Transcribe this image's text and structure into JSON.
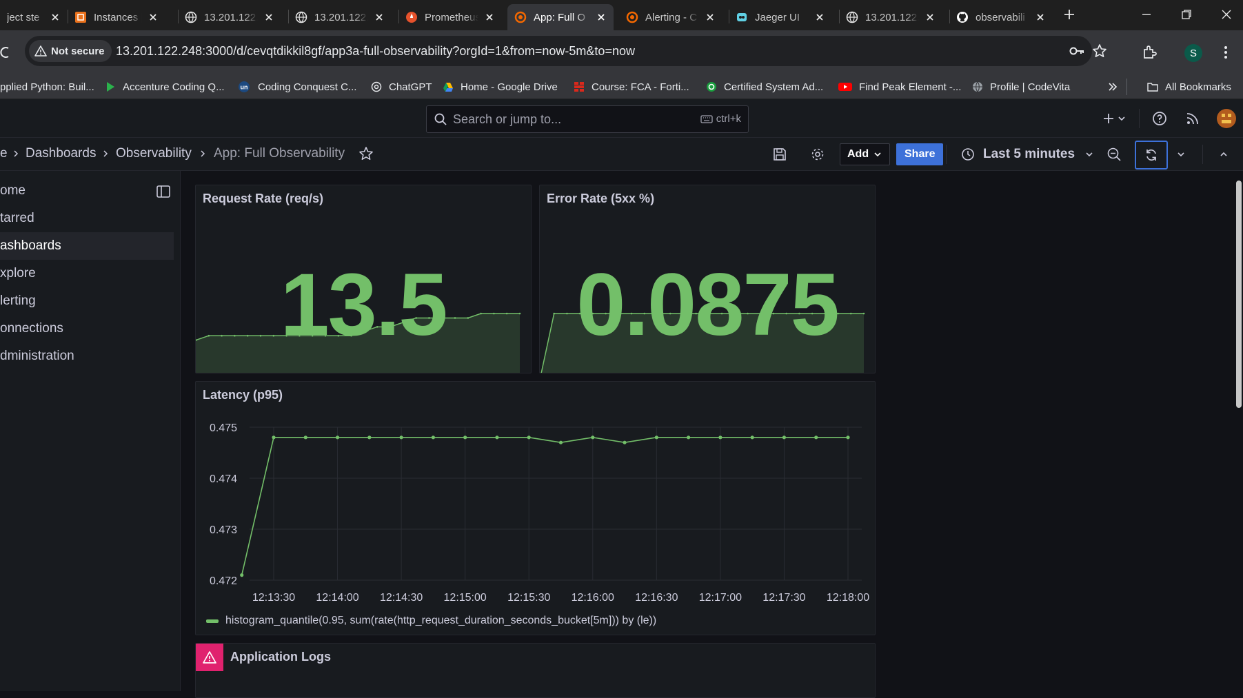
{
  "browser": {
    "tabs": [
      {
        "title": "ject ste",
        "icon": "page-icon"
      },
      {
        "title": "Instances |",
        "icon": "instances-icon"
      },
      {
        "title": "13.201.122.",
        "icon": "globe-icon"
      },
      {
        "title": "13.201.122.",
        "icon": "globe-icon"
      },
      {
        "title": "Prometheus",
        "icon": "prometheus-icon"
      },
      {
        "title": "App: Full O",
        "icon": "grafana-icon",
        "active": true
      },
      {
        "title": "Alerting - C",
        "icon": "grafana-icon"
      },
      {
        "title": "Jaeger UI",
        "icon": "jaeger-icon"
      },
      {
        "title": "13.201.122.",
        "icon": "globe-icon"
      },
      {
        "title": "observabili",
        "icon": "github-icon"
      }
    ],
    "security_label": "Not secure",
    "url": "13.201.122.248:3000/d/cevqtdikkil8gf/app3a-full-observability?orgId=1&from=now-5m&to=now",
    "profile_initial": "S",
    "bookmarks": [
      {
        "label": "pplied Python: Buil...",
        "icon": "bookmark-icon"
      },
      {
        "label": "Accenture Coding Q...",
        "icon": "accenture-icon"
      },
      {
        "label": "Coding Conquest C...",
        "icon": "unstop-icon"
      },
      {
        "label": "ChatGPT",
        "icon": "chatgpt-icon"
      },
      {
        "label": "Home - Google Drive",
        "icon": "drive-icon"
      },
      {
        "label": "Course: FCA - Forti...",
        "icon": "fortinet-icon"
      },
      {
        "label": "Certified System Ad...",
        "icon": "certificate-icon"
      },
      {
        "label": "Find Peak Element -...",
        "icon": "youtube-icon"
      },
      {
        "label": "Profile | CodeVita",
        "icon": "globe-icon"
      }
    ],
    "all_bookmarks_label": "All Bookmarks",
    "colors": {
      "tabbar": "#1f1f1f",
      "toolbar": "#35363a",
      "omnibox": "#202124"
    }
  },
  "grafana": {
    "search_placeholder": "Search or jump to...",
    "search_shortcut": "ctrl+k",
    "breadcrumb": [
      "e",
      "Dashboards",
      "Observability",
      "App: Full Observability"
    ],
    "add_label": "Add",
    "share_label": "Share",
    "time_range": "Last 5 minutes",
    "nav": [
      "Home",
      "Starred",
      "Dashboards",
      "Explore",
      "Alerting",
      "Connections",
      "Administration"
    ],
    "nav_visible": [
      "ome",
      "tarred",
      "ashboards",
      "xplore",
      "lerting",
      "onnections",
      "dministration"
    ],
    "nav_active": "Dashboards",
    "colors": {
      "bg": "#111217",
      "panel": "#181b1f",
      "series": "#73bf69",
      "primary": "#3d71d9",
      "alert": "#e0226e"
    }
  },
  "panels": {
    "request_rate": {
      "title": "Request Rate (req/s)",
      "value": "13.5",
      "sparkline": [
        7.5,
        8.5,
        8.5,
        8.5,
        8.5,
        8.5,
        8.5,
        8.5,
        8.5,
        8.5,
        8.5,
        8.5,
        8.5,
        9.5,
        10.5,
        10.5,
        11.5,
        12.5,
        12.5,
        12.5,
        12.5,
        12.5,
        13.5,
        13.5,
        13.5,
        13.5
      ]
    },
    "error_rate": {
      "title": "Error Rate (5xx %)",
      "value": "0.0875",
      "sparkline": [
        0,
        0.0875,
        0.0875,
        0.0875,
        0.0875,
        0.0875,
        0.0875,
        0.0875,
        0.0875,
        0.0875,
        0.0875,
        0.0875,
        0.0875,
        0.0875,
        0.0875,
        0.0875,
        0.0875,
        0.0875,
        0.0875,
        0.0875,
        0.0875,
        0.0875,
        0.0875,
        0.0875,
        0.0875,
        0.0875
      ]
    },
    "latency": {
      "title": "Latency (p95)",
      "legend": "histogram_quantile(0.95, sum(rate(http_request_duration_seconds_bucket[5m])) by (le))"
    },
    "logs": {
      "title": "Application Logs"
    }
  },
  "chart_data": {
    "type": "line",
    "title": "Latency (p95)",
    "xlabel": "",
    "ylabel": "",
    "x_ticks": [
      "12:13:30",
      "12:14:00",
      "12:14:30",
      "12:15:00",
      "12:15:30",
      "12:16:00",
      "12:16:30",
      "12:17:00",
      "12:17:30",
      "12:18:00"
    ],
    "y_ticks": [
      "0.472",
      "0.473",
      "0.474",
      "0.475"
    ],
    "ylim": [
      0.472,
      0.475
    ],
    "grid": true,
    "legend_position": "bottom-left",
    "series": [
      {
        "name": "histogram_quantile(0.95, sum(rate(http_request_duration_seconds_bucket[5m])) by (le))",
        "color": "#73bf69",
        "x": [
          "12:13:15",
          "12:13:30",
          "12:13:45",
          "12:14:00",
          "12:14:15",
          "12:14:30",
          "12:14:45",
          "12:15:00",
          "12:15:15",
          "12:15:30",
          "12:15:45",
          "12:16:00",
          "12:16:15",
          "12:16:30",
          "12:16:45",
          "12:17:00",
          "12:17:15",
          "12:17:30",
          "12:17:45",
          "12:18:00"
        ],
        "values": [
          0.4721,
          0.4748,
          0.4748,
          0.4748,
          0.4748,
          0.4748,
          0.4748,
          0.4748,
          0.4748,
          0.4748,
          0.4747,
          0.4748,
          0.4747,
          0.4748,
          0.4748,
          0.4748,
          0.4748,
          0.4748,
          0.4748,
          0.4748
        ]
      }
    ]
  }
}
